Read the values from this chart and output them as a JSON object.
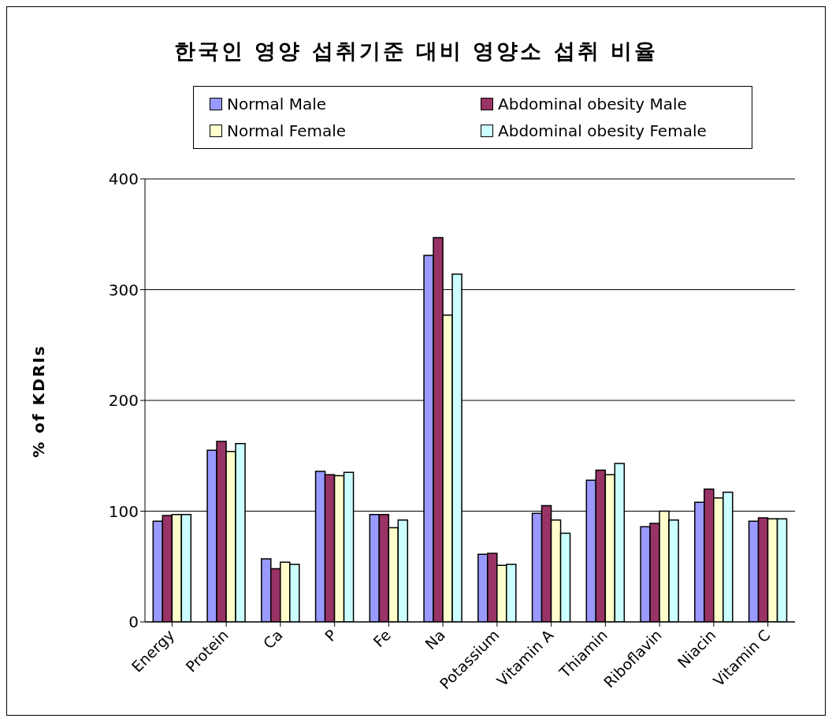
{
  "chart_data": {
    "type": "bar",
    "title": "한국인 영양 섭취기준 대비 영양소 섭취 비율",
    "ylabel": "% of KDRIs",
    "categories": [
      "Energy",
      "Protein",
      "Ca",
      "P",
      "Fe",
      "Na",
      "Potassium",
      "Vitamin A",
      "Thiamin",
      "Riboflavin",
      "Niacin",
      "Vitamin C"
    ],
    "series": [
      {
        "name": "Normal Male",
        "color": "#9999ff",
        "values": [
          91,
          155,
          57,
          136,
          97,
          331,
          61,
          98,
          128,
          86,
          108,
          91
        ]
      },
      {
        "name": "Abdominal obesity Male",
        "color": "#993366",
        "values": [
          96,
          163,
          48,
          133,
          97,
          347,
          62,
          105,
          137,
          89,
          120,
          94
        ]
      },
      {
        "name": "Normal Female",
        "color": "#ffffcc",
        "values": [
          97,
          154,
          54,
          132,
          85,
          277,
          51,
          92,
          133,
          100,
          112,
          93
        ]
      },
      {
        "name": "Abdominal obesity Female",
        "color": "#ccffff",
        "values": [
          97,
          161,
          52,
          135,
          92,
          314,
          52,
          80,
          143,
          92,
          117,
          93
        ]
      }
    ],
    "ylim": [
      0,
      400
    ],
    "yticks": [
      0,
      100,
      200,
      300,
      400
    ],
    "grid": "y",
    "legend": "top"
  }
}
